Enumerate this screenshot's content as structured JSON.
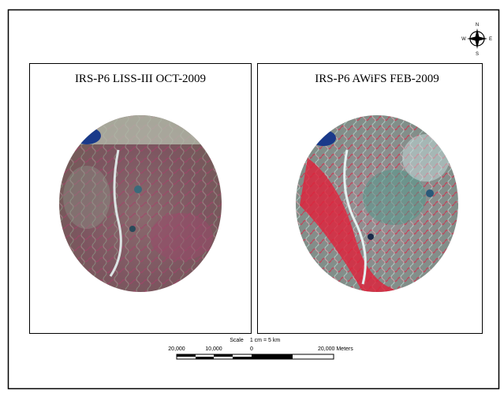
{
  "panels": [
    {
      "title": "IRS-P6 LISS-III OCT-2009"
    },
    {
      "title": "IRS-P6 AWiFS FEB-2009"
    }
  ],
  "compass": {
    "north": "N",
    "east": "E",
    "south": "S",
    "west": "W"
  },
  "scale_bar": {
    "title": "Scale",
    "ratio": "1 cm = 5 km",
    "labels": [
      "20,000",
      "10,000",
      "0",
      "20,000 Meters"
    ]
  }
}
